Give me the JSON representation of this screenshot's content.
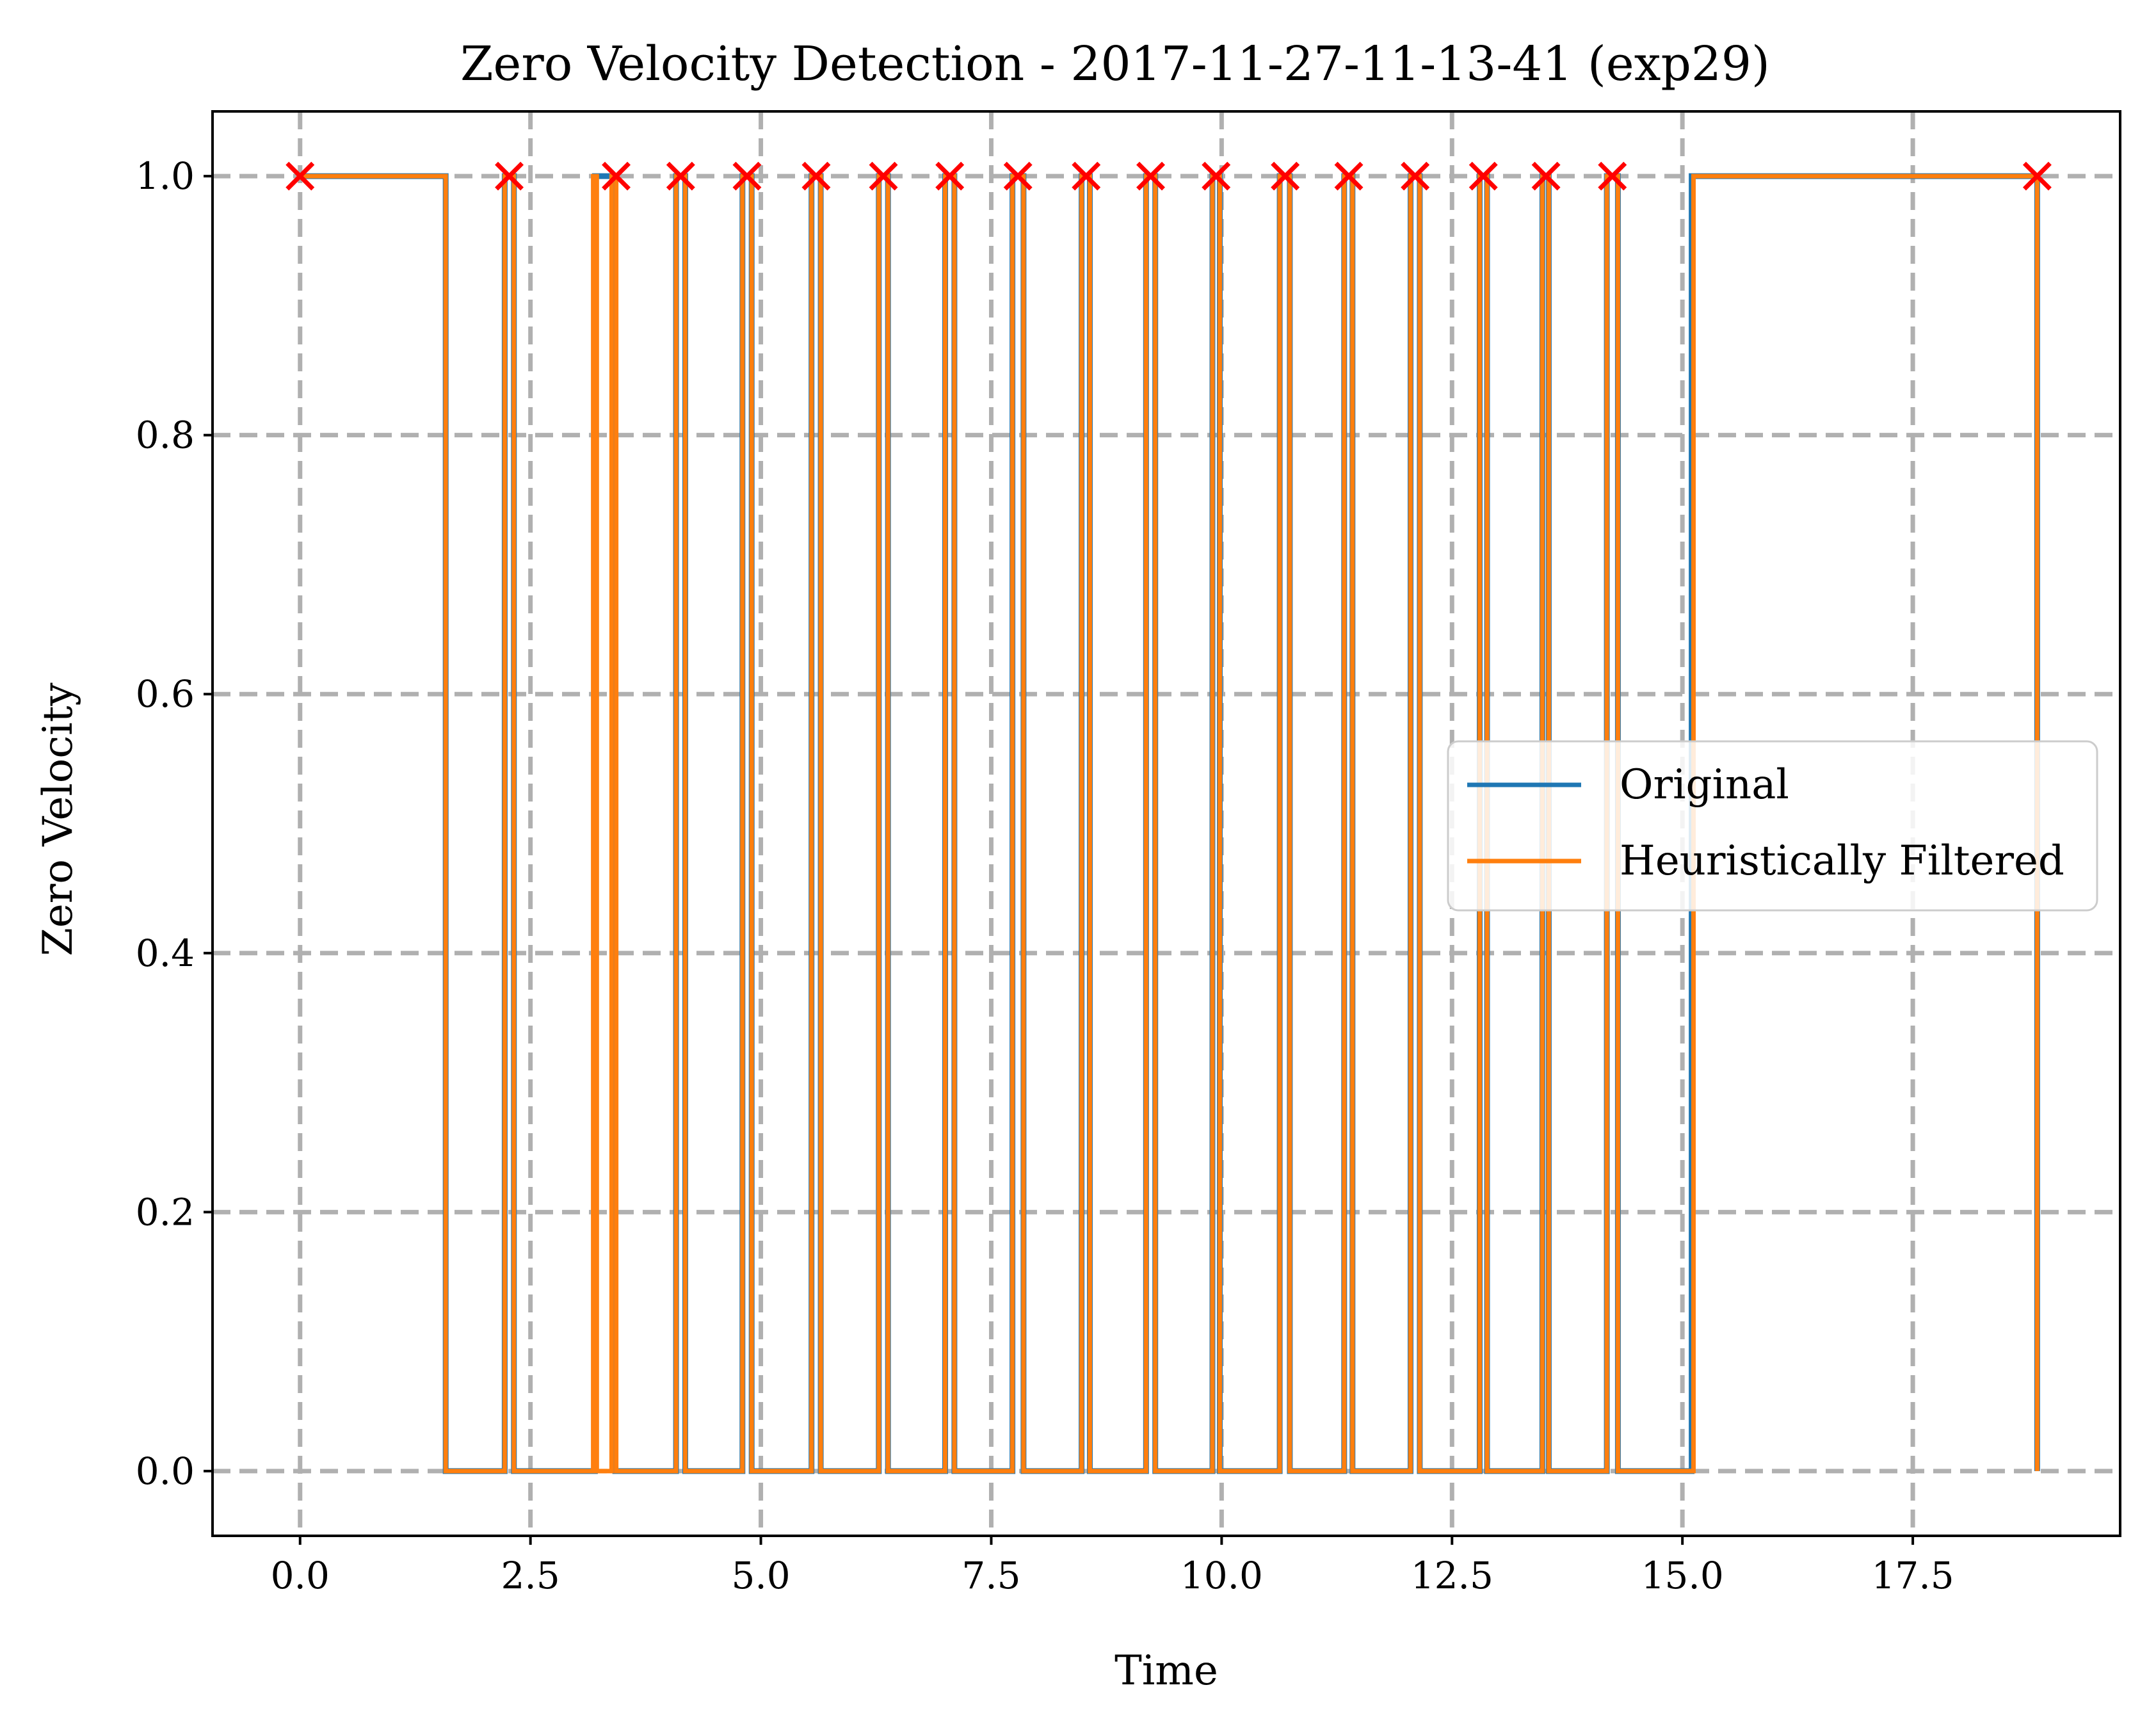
{
  "chart_data": {
    "type": "line",
    "title": "Zero Velocity Detection - 2017-11-27-11-13-41 (exp29)",
    "xlabel": "Time",
    "ylabel": "Zero Velocity",
    "xlim": [
      -0.95,
      19.75
    ],
    "ylim": [
      -0.05,
      1.05
    ],
    "xticks": [
      0.0,
      2.5,
      5.0,
      7.5,
      10.0,
      12.5,
      15.0,
      17.5
    ],
    "xtick_labels": [
      "0.0",
      "2.5",
      "5.0",
      "7.5",
      "10.0",
      "12.5",
      "15.0",
      "17.5"
    ],
    "yticks": [
      0.0,
      0.2,
      0.4,
      0.6,
      0.8,
      1.0
    ],
    "ytick_labels": [
      "0.0",
      "0.2",
      "0.4",
      "0.6",
      "0.8",
      "1.0"
    ],
    "grid": true,
    "legend_position": "center-right",
    "series": [
      {
        "name": "Original",
        "color": "#1f77b4",
        "segments_value_1": [
          [
            0.0,
            1.58
          ],
          [
            2.22,
            2.32
          ],
          [
            3.2,
            3.42
          ],
          [
            4.08,
            4.18
          ],
          [
            4.8,
            4.9
          ],
          [
            5.55,
            5.65
          ],
          [
            6.28,
            6.38
          ],
          [
            7.0,
            7.1
          ],
          [
            7.73,
            7.85
          ],
          [
            8.48,
            8.57
          ],
          [
            9.18,
            9.28
          ],
          [
            9.9,
            9.98
          ],
          [
            10.63,
            10.74
          ],
          [
            11.33,
            11.42
          ],
          [
            12.05,
            12.15
          ],
          [
            12.8,
            12.88
          ],
          [
            13.48,
            13.55
          ],
          [
            14.18,
            14.3
          ],
          [
            15.1,
            18.85
          ]
        ],
        "x_range": [
          0.0,
          18.85
        ]
      },
      {
        "name": "Heuristically Filtered",
        "color": "#ff7f0e",
        "segments_value_1": [
          [
            0.0,
            1.58
          ],
          [
            2.22,
            2.32
          ],
          [
            3.18,
            3.22
          ],
          [
            3.38,
            3.43
          ],
          [
            4.08,
            4.18
          ],
          [
            4.8,
            4.9
          ],
          [
            5.55,
            5.65
          ],
          [
            6.28,
            6.38
          ],
          [
            7.0,
            7.1
          ],
          [
            7.73,
            7.85
          ],
          [
            8.48,
            8.57
          ],
          [
            9.18,
            9.28
          ],
          [
            9.9,
            9.98
          ],
          [
            10.63,
            10.74
          ],
          [
            11.33,
            11.42
          ],
          [
            12.05,
            12.15
          ],
          [
            12.8,
            12.88
          ],
          [
            13.48,
            13.55
          ],
          [
            14.18,
            14.3
          ],
          [
            15.12,
            18.85
          ]
        ],
        "x_range": [
          0.0,
          18.85
        ]
      }
    ],
    "markers": {
      "symbol": "x",
      "color": "#ff0000",
      "y": 1.0,
      "x": [
        0.0,
        2.27,
        3.43,
        4.13,
        4.85,
        5.6,
        6.33,
        7.05,
        7.79,
        8.53,
        9.23,
        9.94,
        10.69,
        11.38,
        12.1,
        12.84,
        13.52,
        14.24,
        18.85
      ]
    },
    "colors": {
      "grid": "#b0b0b0",
      "marker": "#ff0000"
    }
  }
}
